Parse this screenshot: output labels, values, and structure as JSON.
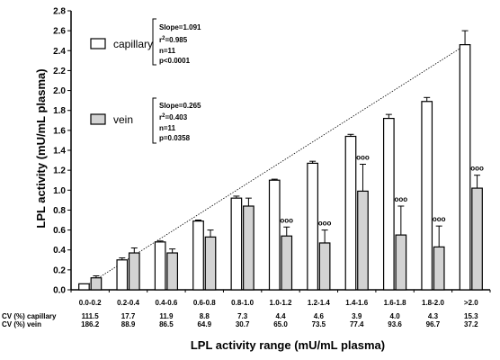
{
  "chart_data": {
    "type": "bar",
    "xlabel": "LPL activity range (mU/mL plasma)",
    "ylabel": "LPL activity (mU/mL plasma)",
    "ylim": [
      0.0,
      2.8
    ],
    "yticks": [
      "0.0",
      "0.2",
      "0.4",
      "0.6",
      "0.8",
      "1.0",
      "1.2",
      "1.4",
      "1.6",
      "1.8",
      "2.0",
      "2.2",
      "2.4",
      "2.6",
      "2.8"
    ],
    "categories": [
      "0.0-0.2",
      "0.2-0.4",
      "0.4-0.6",
      "0.6-0.8",
      "0.8-1.0",
      "1.0-1.2",
      "1.2-1.4",
      "1.4-1.6",
      "1.6-1.8",
      "1.8-2.0",
      ">2.0"
    ],
    "series": [
      {
        "name": "capillary",
        "color": "#ffffff",
        "values": [
          0.06,
          0.3,
          0.48,
          0.69,
          0.92,
          1.1,
          1.27,
          1.54,
          1.72,
          1.89,
          2.46
        ],
        "errors": [
          0.0,
          0.02,
          0.01,
          0.01,
          0.02,
          0.01,
          0.02,
          0.02,
          0.04,
          0.04,
          0.14
        ]
      },
      {
        "name": "vein",
        "color": "#d3d3d3",
        "values": [
          0.12,
          0.37,
          0.37,
          0.53,
          0.84,
          0.54,
          0.47,
          0.99,
          0.55,
          0.43,
          1.02
        ],
        "errors": [
          0.02,
          0.05,
          0.04,
          0.07,
          0.08,
          0.09,
          0.13,
          0.27,
          0.29,
          0.21,
          0.13
        ]
      }
    ],
    "annotations": [
      "",
      "",
      "",
      "",
      "",
      "ooo",
      "ooo",
      "ooo",
      "ooo",
      "ooo",
      "ooo"
    ],
    "trend_line": {
      "x_from": "0.0-0.2",
      "y_from": 0.0,
      "x_to": ">2.0",
      "y_to": 2.46
    },
    "legend": [
      {
        "label": "capillary",
        "stats": [
          "Slope=1.091",
          "r",
          "2",
          "=0.985",
          "n=11",
          "p<0.0001"
        ]
      },
      {
        "label": "vein",
        "stats": [
          "Slope=0.265",
          "r",
          "2",
          "=0.403",
          "n=11",
          "p=0.0358"
        ]
      }
    ],
    "cv_rows": [
      {
        "label": "CV (%) capillary",
        "values": [
          "111.5",
          "17.7",
          "11.9",
          "8.8",
          "7.3",
          "4.4",
          "4.6",
          "3.9",
          "4.0",
          "4.3",
          "15.3"
        ]
      },
      {
        "label": "CV (%) vein",
        "values": [
          "186.2",
          "88.9",
          "86.5",
          "64.9",
          "30.7",
          "65.0",
          "73.5",
          "77.4",
          "93.6",
          "96.7",
          "37.2"
        ]
      }
    ]
  }
}
